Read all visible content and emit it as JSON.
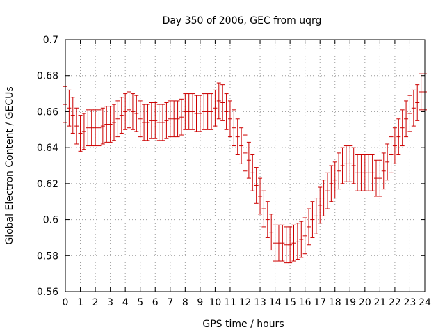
{
  "chart_data": {
    "type": "scatter",
    "title": "Day 350 of 2006, GEC from uqrg",
    "xlabel": "GPS time / hours",
    "ylabel": "Global Electron Content / GECUs",
    "xlim": [
      0,
      24
    ],
    "ylim": [
      0.56,
      0.7
    ],
    "xticks": [
      0,
      1,
      2,
      3,
      4,
      5,
      6,
      7,
      8,
      9,
      10,
      11,
      12,
      13,
      14,
      15,
      16,
      17,
      18,
      19,
      20,
      21,
      22,
      23,
      24
    ],
    "yticks": [
      0.56,
      0.58,
      0.6,
      0.62,
      0.64,
      0.66,
      0.68,
      0.7
    ],
    "ytick_labels": [
      "0.56",
      "0.58",
      "0.6",
      "0.62",
      "0.64",
      "0.66",
      "0.68",
      "0.7"
    ],
    "grid": true,
    "color": "#cc0000",
    "error": 0.01,
    "x": [
      0,
      0.25,
      0.5,
      0.75,
      1,
      1.25,
      1.5,
      1.75,
      2,
      2.25,
      2.5,
      2.75,
      3,
      3.25,
      3.5,
      3.75,
      4,
      4.25,
      4.5,
      4.75,
      5,
      5.25,
      5.5,
      5.75,
      6,
      6.25,
      6.5,
      6.75,
      7,
      7.25,
      7.5,
      7.75,
      8,
      8.25,
      8.5,
      8.75,
      9,
      9.25,
      9.5,
      9.75,
      10,
      10.25,
      10.5,
      10.75,
      11,
      11.25,
      11.5,
      11.75,
      12,
      12.25,
      12.5,
      12.75,
      13,
      13.25,
      13.5,
      13.75,
      14,
      14.25,
      14.5,
      14.75,
      15,
      15.25,
      15.5,
      15.75,
      16,
      16.25,
      16.5,
      16.75,
      17,
      17.25,
      17.5,
      17.75,
      18,
      18.25,
      18.5,
      18.75,
      19,
      19.25,
      19.5,
      19.75,
      20,
      20.25,
      20.5,
      20.75,
      21,
      21.25,
      21.5,
      21.75,
      22,
      22.25,
      22.5,
      22.75,
      23,
      23.25,
      23.5,
      23.75,
      24
    ],
    "y": [
      0.664,
      0.662,
      0.658,
      0.652,
      0.648,
      0.649,
      0.651,
      0.651,
      0.651,
      0.651,
      0.652,
      0.653,
      0.653,
      0.654,
      0.656,
      0.658,
      0.66,
      0.661,
      0.66,
      0.659,
      0.656,
      0.654,
      0.654,
      0.655,
      0.655,
      0.654,
      0.654,
      0.655,
      0.656,
      0.656,
      0.656,
      0.657,
      0.66,
      0.66,
      0.66,
      0.659,
      0.659,
      0.66,
      0.66,
      0.66,
      0.662,
      0.666,
      0.665,
      0.66,
      0.656,
      0.651,
      0.646,
      0.641,
      0.637,
      0.633,
      0.626,
      0.619,
      0.613,
      0.606,
      0.6,
      0.593,
      0.587,
      0.587,
      0.587,
      0.586,
      0.586,
      0.587,
      0.588,
      0.589,
      0.591,
      0.596,
      0.6,
      0.602,
      0.608,
      0.612,
      0.616,
      0.62,
      0.622,
      0.627,
      0.63,
      0.631,
      0.631,
      0.63,
      0.626,
      0.626,
      0.626,
      0.626,
      0.626,
      0.623,
      0.623,
      0.627,
      0.632,
      0.636,
      0.641,
      0.646,
      0.651,
      0.656,
      0.659,
      0.662,
      0.665,
      0.671,
      0.671
    ]
  }
}
